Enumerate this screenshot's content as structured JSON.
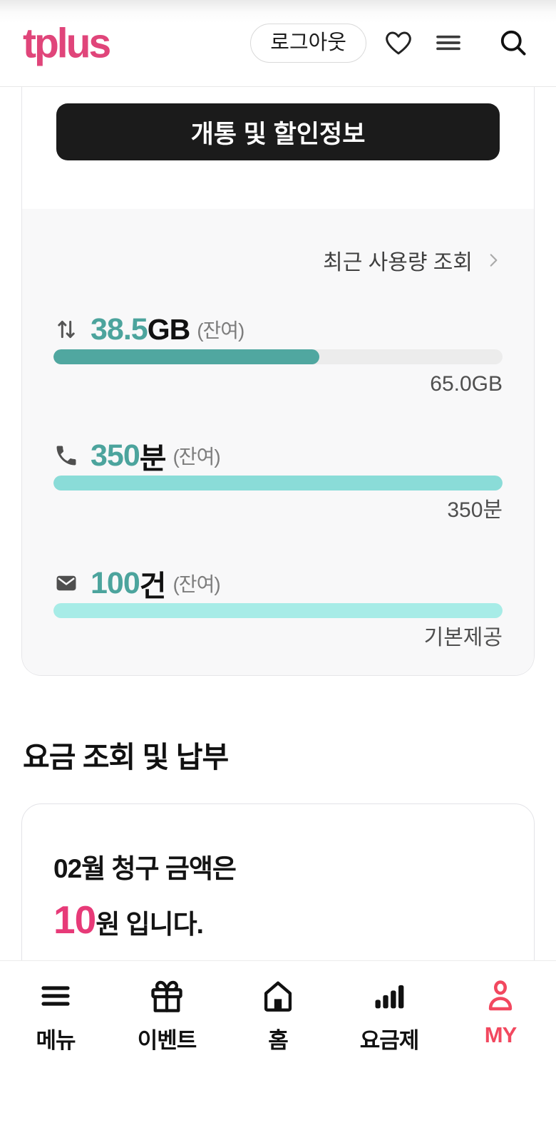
{
  "header": {
    "logo_text": "tplus",
    "logout_label": "로그아웃",
    "icons": [
      "heart-icon",
      "menu-icon",
      "search-icon"
    ]
  },
  "promo": {
    "button_label": "개통 및 할인정보"
  },
  "usage": {
    "link_label": "최근 사용량 조회",
    "items": [
      {
        "icon": "data-arrows-icon",
        "value": "38.5",
        "unit": "GB",
        "suffix": "(잔여)",
        "percent": 59.2,
        "fill_color": "#50a7a0",
        "footer": "65.0GB"
      },
      {
        "icon": "phone-icon",
        "value": "350",
        "unit": "분",
        "suffix": "(잔여)",
        "percent": 100,
        "fill_color": "#8adcd8",
        "footer": "350분"
      },
      {
        "icon": "mail-icon",
        "value": "100",
        "unit": "건",
        "suffix": "(잔여)",
        "percent": 100,
        "fill_color": "#a7ece7",
        "footer": "기본제공"
      }
    ]
  },
  "billing": {
    "section_title": "요금 조회 및 납부",
    "month": "02",
    "line1_suffix": "월 청구 금액은",
    "amount": "10",
    "amount_suffix": "원 입니다."
  },
  "bottom_nav": {
    "items": [
      {
        "label": "메뉴",
        "icon": "menu-icon"
      },
      {
        "label": "이벤트",
        "icon": "gift-icon"
      },
      {
        "label": "홈",
        "icon": "home-icon"
      },
      {
        "label": "요금제",
        "icon": "signal-bars-icon"
      },
      {
        "label": "MY",
        "icon": "person-icon"
      }
    ],
    "active_item": "MY"
  },
  "colors": {
    "brand_pink": "#e0457a",
    "amount_pink": "#e73a78",
    "teal_value": "#4ca49d",
    "nav_active": "#f2485f",
    "bar_track": "#ececec"
  }
}
